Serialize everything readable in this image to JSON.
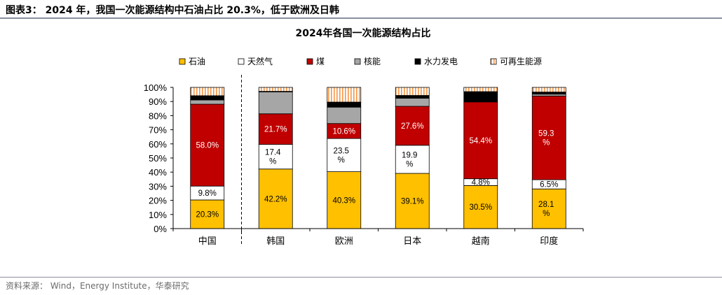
{
  "figure_title": "图表3： 2024 年，我国一次能源结构中石油占比 20.3%，低于欧洲及日韩",
  "source_note": "资料来源： Wind，Energy Institute，华泰研究",
  "chart_data": {
    "type": "bar",
    "stacked": true,
    "title": "2024年各国一次能源结构占比",
    "xlabel": "",
    "ylabel": "",
    "ylim": [
      0,
      100
    ],
    "ytick_labels": [
      "0%",
      "10%",
      "20%",
      "30%",
      "40%",
      "50%",
      "60%",
      "70%",
      "80%",
      "90%",
      "100%"
    ],
    "legend_position": "top",
    "categories": [
      "中国",
      "韩国",
      "欧洲",
      "日本",
      "越南",
      "印度"
    ],
    "series": [
      {
        "name": "石油",
        "color": "#FFC000",
        "values": [
          20.3,
          42.2,
          40.3,
          39.1,
          30.5,
          28.1
        ],
        "labels": [
          "20.3%",
          "42.2%",
          "40.3%",
          "39.1%",
          "30.5%",
          "28.1 %"
        ]
      },
      {
        "name": "天然气",
        "color": "#FFFFFF",
        "values": [
          9.8,
          17.4,
          23.5,
          19.9,
          4.8,
          6.5
        ],
        "labels": [
          "9.8%",
          "17.4 %",
          "23.5 %",
          "19.9 %",
          "4.8%",
          "6.5%"
        ]
      },
      {
        "name": "煤",
        "color": "#C00000",
        "values": [
          58.0,
          21.7,
          10.6,
          27.6,
          54.4,
          59.3
        ],
        "labels": [
          "58.0%",
          "21.7%",
          "10.6%",
          "27.6%",
          "54.4%",
          "59.3 %"
        ]
      },
      {
        "name": "核能",
        "color": "#A6A6A6",
        "values": [
          3.0,
          15.5,
          11.6,
          5.7,
          0,
          1.3
        ],
        "labels": []
      },
      {
        "name": "水力发电",
        "color": "#000000",
        "values": [
          3.0,
          0.4,
          3.6,
          2.0,
          7.3,
          1.5
        ],
        "labels": []
      },
      {
        "name": "可再生能源",
        "color": "#F79646",
        "pattern": "vertical-stripes",
        "values": [
          5.9,
          2.8,
          10.4,
          5.7,
          3.0,
          3.3
        ],
        "labels": []
      }
    ]
  }
}
